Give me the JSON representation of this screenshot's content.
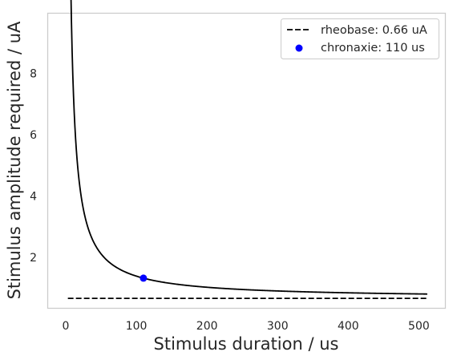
{
  "chart_data": {
    "type": "line",
    "title": "",
    "xlabel": "Stimulus duration / us",
    "ylabel": "Stimulus amplitude required / uA",
    "xlim": [
      -25,
      537
    ],
    "ylim": [
      0.35,
      9.95
    ],
    "xticks": [
      0,
      100,
      200,
      300,
      400,
      500
    ],
    "yticks": [
      2,
      4,
      6,
      8
    ],
    "grid": false,
    "legend_position": "top-right",
    "rheobase": 0.66,
    "chronaxie": 110,
    "x_range": [
      3,
      512
    ],
    "series": [
      {
        "name": "rheobase: 0.66 uA",
        "kind": "dashed-line",
        "color": "#000000",
        "x": [
          3,
          512
        ],
        "y": [
          0.66,
          0.66
        ]
      },
      {
        "name": "",
        "kind": "line",
        "color": "#000000",
        "function": "rheobase * (1 + chronaxie / x)"
      },
      {
        "name": "chronaxie: 110 us",
        "kind": "scatter",
        "color": "#0000ff",
        "x": [
          110
        ],
        "y": [
          1.32
        ]
      }
    ]
  }
}
